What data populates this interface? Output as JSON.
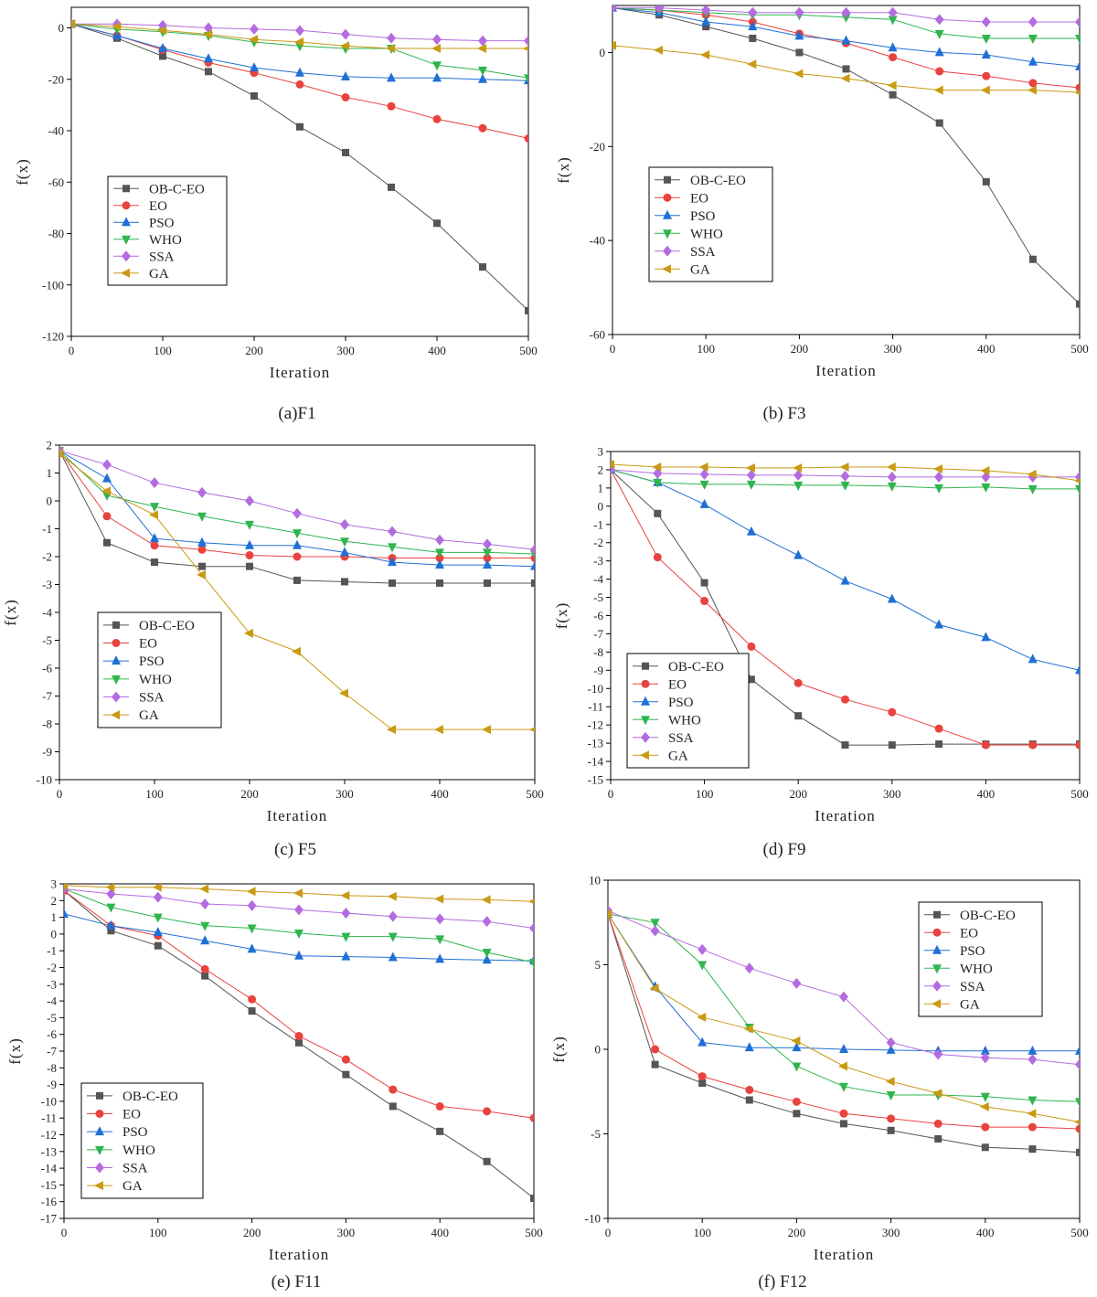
{
  "series_colors": {
    "OB-C-EO": "#555555",
    "EO": "#e8433f",
    "PSO": "#1f6fd6",
    "WHO": "#2fb54e",
    "SSA": "#b46be0",
    "GA": "#c99a14"
  },
  "chart_data": [
    {
      "type": "line",
      "caption": "(a)F1",
      "xlabel": "Iteration",
      "ylabel": "f(x)",
      "xlim": [
        0,
        500
      ],
      "ylim": [
        -120,
        8
      ],
      "xticks": [
        0,
        100,
        200,
        300,
        400,
        500
      ],
      "yticks": [
        0,
        -20,
        -40,
        -60,
        -80,
        -100,
        -120
      ],
      "legend_position": "lower-left",
      "x": [
        0,
        50,
        100,
        150,
        200,
        250,
        300,
        350,
        400,
        450,
        500
      ],
      "series": [
        {
          "name": "OB-C-EO",
          "values": [
            1.5,
            -4,
            -11,
            -17,
            -26.5,
            -38.5,
            -48.5,
            -62,
            -76,
            -93,
            -110
          ]
        },
        {
          "name": "EO",
          "values": [
            1.5,
            -3,
            -8.5,
            -13.5,
            -17.5,
            -22,
            -27,
            -30.5,
            -35.5,
            -39,
            -43
          ]
        },
        {
          "name": "PSO",
          "values": [
            1.5,
            -3,
            -8,
            -12,
            -15.5,
            -17.5,
            -19,
            -19.5,
            -19.5,
            -20,
            -20.5
          ]
        },
        {
          "name": "WHO",
          "values": [
            1.5,
            -0.5,
            -1.5,
            -3,
            -5.5,
            -7,
            -8,
            -8,
            -14.5,
            -16.5,
            -19.5
          ]
        },
        {
          "name": "SSA",
          "values": [
            1.5,
            1.5,
            1,
            0,
            -0.5,
            -1,
            -2.5,
            -4,
            -4.5,
            -5,
            -5
          ]
        },
        {
          "name": "GA",
          "values": [
            1.5,
            0.5,
            -1,
            -2.5,
            -4.5,
            -5.5,
            -7,
            -8,
            -8,
            -8,
            -8
          ]
        }
      ]
    },
    {
      "type": "line",
      "caption": "(b) F3",
      "xlabel": "Iteration",
      "ylabel": "f(x)",
      "xlim": [
        0,
        500
      ],
      "ylim": [
        -60,
        10
      ],
      "xticks": [
        0,
        100,
        200,
        300,
        400,
        500
      ],
      "yticks": [
        0,
        -20,
        -40,
        -60
      ],
      "legend_position": "middle-left",
      "x": [
        0,
        50,
        100,
        150,
        200,
        250,
        300,
        350,
        400,
        450,
        500
      ],
      "series": [
        {
          "name": "OB-C-EO",
          "values": [
            9.5,
            8,
            5.5,
            3,
            0,
            -3.5,
            -9,
            -15,
            -27.5,
            -44,
            -53.5
          ]
        },
        {
          "name": "EO",
          "values": [
            9.5,
            9,
            8,
            6.5,
            4,
            2,
            -1,
            -4,
            -5,
            -6.5,
            -7.5
          ]
        },
        {
          "name": "PSO",
          "values": [
            9.5,
            8.5,
            6.5,
            5.5,
            3.5,
            2.5,
            1,
            0,
            -0.5,
            -2,
            -3
          ]
        },
        {
          "name": "WHO",
          "values": [
            9.5,
            9,
            8.5,
            8,
            8,
            7.5,
            7,
            4,
            3,
            3,
            3
          ]
        },
        {
          "name": "SSA",
          "values": [
            9.5,
            9.5,
            9,
            8.5,
            8.5,
            8.5,
            8.5,
            7,
            6.5,
            6.5,
            6.5
          ]
        },
        {
          "name": "GA",
          "values": [
            1.5,
            0.5,
            -0.5,
            -2.5,
            -4.5,
            -5.5,
            -7,
            -8,
            -8,
            -8,
            -8.5
          ]
        }
      ]
    },
    {
      "type": "line",
      "caption": "(c) F5",
      "xlabel": "Iteration",
      "ylabel": "f(x)",
      "xlim": [
        0,
        500
      ],
      "ylim": [
        -10,
        2
      ],
      "xticks": [
        0,
        100,
        200,
        300,
        400,
        500
      ],
      "yticks": [
        2,
        1,
        0,
        -1,
        -2,
        -3,
        -4,
        -5,
        -6,
        -7,
        -8,
        -9,
        -10
      ],
      "legend_position": "middle-left",
      "x": [
        0,
        50,
        100,
        150,
        200,
        250,
        300,
        350,
        400,
        450,
        500
      ],
      "series": [
        {
          "name": "OB-C-EO",
          "values": [
            1.8,
            -1.5,
            -2.2,
            -2.35,
            -2.35,
            -2.85,
            -2.9,
            -2.95,
            -2.95,
            -2.95,
            -2.95
          ]
        },
        {
          "name": "EO",
          "values": [
            1.8,
            -0.55,
            -1.6,
            -1.75,
            -1.95,
            -2,
            -2,
            -2.05,
            -2.05,
            -2.05,
            -2.05
          ]
        },
        {
          "name": "PSO",
          "values": [
            1.8,
            0.8,
            -1.35,
            -1.5,
            -1.6,
            -1.6,
            -1.85,
            -2.2,
            -2.3,
            -2.3,
            -2.35
          ]
        },
        {
          "name": "WHO",
          "values": [
            1.8,
            0.2,
            -0.2,
            -0.55,
            -0.85,
            -1.15,
            -1.45,
            -1.65,
            -1.85,
            -1.85,
            -1.9
          ]
        },
        {
          "name": "SSA",
          "values": [
            1.8,
            1.3,
            0.65,
            0.3,
            0,
            -0.45,
            -0.85,
            -1.1,
            -1.4,
            -1.55,
            -1.75
          ]
        },
        {
          "name": "GA",
          "values": [
            1.7,
            0.35,
            -0.5,
            -2.65,
            -4.75,
            -5.4,
            -6.9,
            -8.2,
            -8.2,
            -8.2,
            -8.2
          ]
        }
      ]
    },
    {
      "type": "line",
      "caption": "(d) F9",
      "xlabel": "Iteration",
      "ylabel": "f(x)",
      "xlim": [
        0,
        500
      ],
      "ylim": [
        -15,
        3
      ],
      "xticks": [
        0,
        100,
        200,
        300,
        400,
        500
      ],
      "yticks": [
        3,
        2,
        1,
        0,
        -1,
        -2,
        -3,
        -4,
        -5,
        -6,
        -7,
        -8,
        -9,
        -10,
        -11,
        -12,
        -13,
        -14,
        -15
      ],
      "legend_position": "lower-left",
      "x": [
        0,
        50,
        100,
        150,
        200,
        250,
        300,
        350,
        400,
        450,
        500
      ],
      "series": [
        {
          "name": "OB-C-EO",
          "values": [
            2,
            -0.4,
            -4.2,
            -9.5,
            -11.5,
            -13.1,
            -13.1,
            -13.05,
            -13.05,
            -13.05,
            -13.05
          ]
        },
        {
          "name": "EO",
          "values": [
            2,
            -2.8,
            -5.2,
            -7.7,
            -9.7,
            -10.6,
            -11.3,
            -12.2,
            -13.1,
            -13.1,
            -13.1
          ]
        },
        {
          "name": "PSO",
          "values": [
            2,
            1.3,
            0.1,
            -1.4,
            -2.7,
            -4.1,
            -5.1,
            -6.5,
            -7.2,
            -8.4,
            -9
          ]
        },
        {
          "name": "WHO",
          "values": [
            2,
            1.3,
            1.2,
            1.2,
            1.15,
            1.15,
            1.1,
            1,
            1.05,
            0.95,
            0.95
          ]
        },
        {
          "name": "SSA",
          "values": [
            2,
            1.8,
            1.75,
            1.7,
            1.7,
            1.65,
            1.6,
            1.6,
            1.6,
            1.6,
            1.6
          ]
        },
        {
          "name": "GA",
          "values": [
            2.3,
            2.15,
            2.15,
            2.1,
            2.1,
            2.15,
            2.15,
            2.05,
            1.95,
            1.75,
            1.4
          ]
        }
      ]
    },
    {
      "type": "line",
      "caption": "(e) F11",
      "xlabel": "Iteration",
      "ylabel": "f(x)",
      "xlim": [
        0,
        500
      ],
      "ylim": [
        -17,
        3
      ],
      "xticks": [
        0,
        100,
        200,
        300,
        400,
        500
      ],
      "yticks": [
        3,
        2,
        1,
        0,
        -1,
        -2,
        -3,
        -4,
        -5,
        -6,
        -7,
        -8,
        -9,
        -10,
        -11,
        -12,
        -13,
        -14,
        -15,
        -16,
        -17
      ],
      "legend_position": "lower-left",
      "x": [
        0,
        50,
        100,
        150,
        200,
        250,
        300,
        350,
        400,
        450,
        500
      ],
      "series": [
        {
          "name": "OB-C-EO",
          "values": [
            2.6,
            0.2,
            -0.7,
            -2.5,
            -4.6,
            -6.5,
            -8.4,
            -10.3,
            -11.8,
            -13.6,
            -15.8
          ]
        },
        {
          "name": "EO",
          "values": [
            2.6,
            0.5,
            -0.1,
            -2.1,
            -3.9,
            -6.1,
            -7.5,
            -9.3,
            -10.3,
            -10.6,
            -11
          ]
        },
        {
          "name": "PSO",
          "values": [
            1.2,
            0.5,
            0.1,
            -0.4,
            -0.9,
            -1.3,
            -1.35,
            -1.4,
            -1.5,
            -1.55,
            -1.6
          ]
        },
        {
          "name": "WHO",
          "values": [
            2.7,
            1.6,
            1,
            0.5,
            0.35,
            0.05,
            -0.15,
            -0.15,
            -0.3,
            -1.1,
            -1.7
          ]
        },
        {
          "name": "SSA",
          "values": [
            2.7,
            2.4,
            2.2,
            1.8,
            1.7,
            1.45,
            1.25,
            1.05,
            0.9,
            0.75,
            0.35
          ]
        },
        {
          "name": "GA",
          "values": [
            2.9,
            2.8,
            2.8,
            2.7,
            2.55,
            2.45,
            2.3,
            2.25,
            2.1,
            2.05,
            1.95
          ]
        }
      ]
    },
    {
      "type": "line",
      "caption": "(f) F12",
      "xlabel": "Iteration",
      "ylabel": "f(x)",
      "xlim": [
        0,
        500
      ],
      "ylim": [
        -10,
        10
      ],
      "xticks": [
        0,
        100,
        200,
        300,
        400,
        500
      ],
      "yticks": [
        10,
        5,
        0,
        -5,
        -10
      ],
      "legend_position": "top-right",
      "x": [
        0,
        50,
        100,
        150,
        200,
        250,
        300,
        350,
        400,
        450,
        500
      ],
      "series": [
        {
          "name": "OB-C-EO",
          "values": [
            8,
            -0.9,
            -2,
            -3,
            -3.8,
            -4.4,
            -4.8,
            -5.3,
            -5.8,
            -5.9,
            -6.1
          ]
        },
        {
          "name": "EO",
          "values": [
            8,
            0,
            -1.6,
            -2.4,
            -3.1,
            -3.8,
            -4.1,
            -4.4,
            -4.6,
            -4.6,
            -4.7
          ]
        },
        {
          "name": "PSO",
          "values": [
            8,
            3.7,
            0.4,
            0.1,
            0.1,
            0,
            -0.05,
            -0.1,
            -0.1,
            -0.1,
            -0.1
          ]
        },
        {
          "name": "WHO",
          "values": [
            8,
            7.5,
            5,
            1.3,
            -1,
            -2.2,
            -2.7,
            -2.7,
            -2.8,
            -3,
            -3.1
          ]
        },
        {
          "name": "SSA",
          "values": [
            8.2,
            7,
            5.9,
            4.8,
            3.9,
            3.1,
            0.4,
            -0.3,
            -0.5,
            -0.6,
            -0.9
          ]
        },
        {
          "name": "GA",
          "values": [
            8,
            3.6,
            1.9,
            1.2,
            0.5,
            -1,
            -1.9,
            -2.6,
            -3.4,
            -3.8,
            -4.3
          ]
        }
      ]
    }
  ]
}
